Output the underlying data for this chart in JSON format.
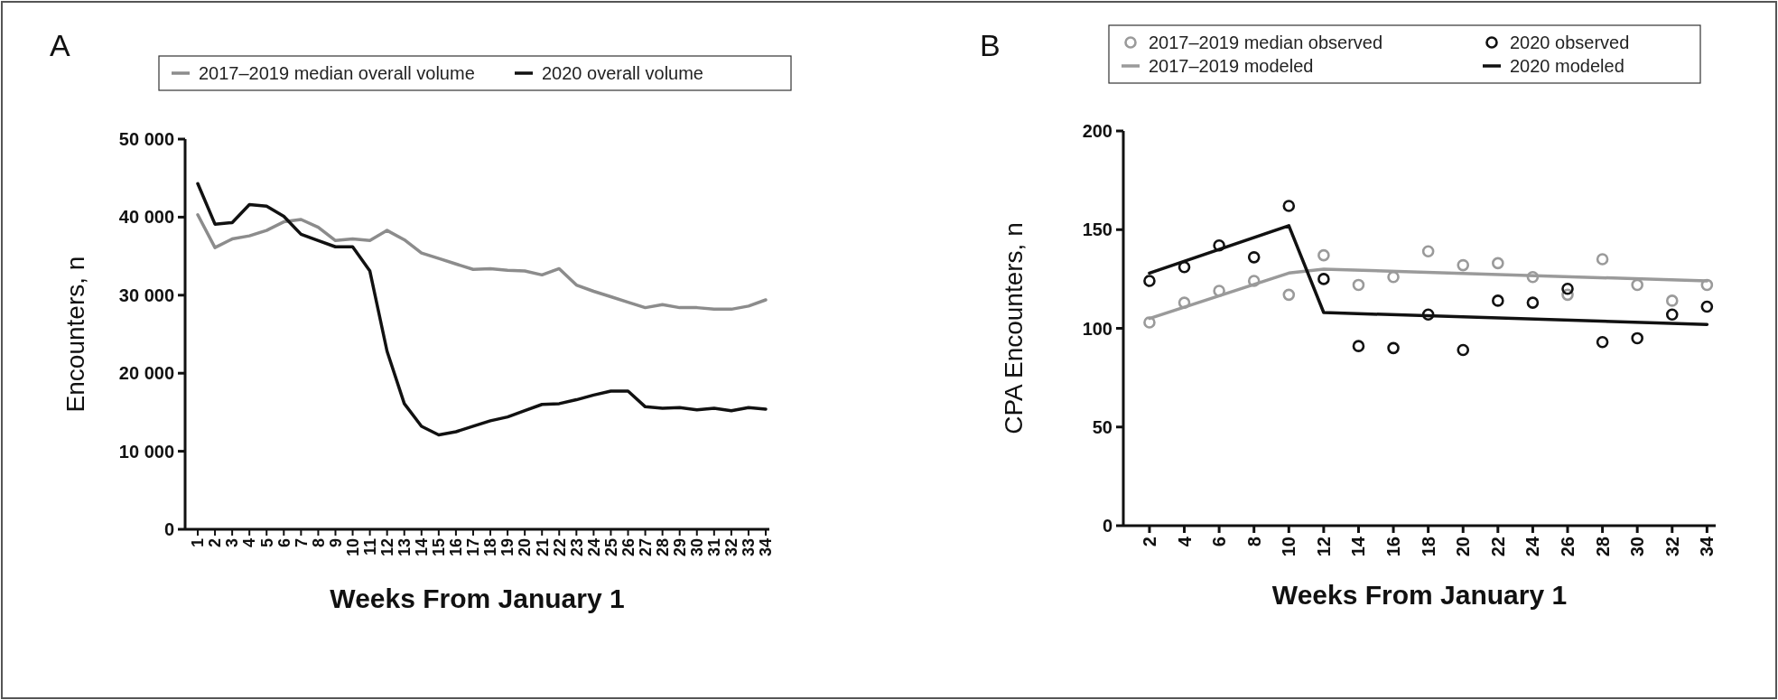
{
  "chart_data": [
    {
      "type": "line",
      "title": "A",
      "xlabel": "Weeks From January 1",
      "ylabel": "Encounters, n",
      "categories": [
        "1",
        "2",
        "3",
        "4",
        "5",
        "6",
        "7",
        "8",
        "9",
        "10",
        "11",
        "12",
        "13",
        "14",
        "15",
        "16",
        "17",
        "18",
        "19",
        "20",
        "21",
        "22",
        "23",
        "24",
        "25",
        "26",
        "27",
        "28",
        "29",
        "30",
        "31",
        "32",
        "33",
        "34"
      ],
      "series": [
        {
          "name": "2017–2019 median overall volume",
          "color": "#8c8c8c",
          "values": [
            40300,
            36100,
            37200,
            37600,
            38300,
            39400,
            39700,
            38700,
            37000,
            37200,
            37000,
            38300,
            37100,
            35400,
            34700,
            34000,
            33300,
            33400,
            33200,
            33100,
            32600,
            33400,
            31300,
            30500,
            29800,
            29100,
            28400,
            28800,
            28400,
            28400,
            28200,
            28200,
            28600,
            29400
          ]
        },
        {
          "name": "2020 overall volume",
          "color": "#111111",
          "values": [
            44300,
            39100,
            39300,
            41600,
            41400,
            40100,
            37800,
            37000,
            36200,
            36200,
            33100,
            22800,
            16100,
            13200,
            12100,
            12500,
            13200,
            13900,
            14400,
            15200,
            16000,
            16100,
            16600,
            17200,
            17700,
            17700,
            15700,
            15500,
            15600,
            15300,
            15500,
            15200,
            15600,
            15400
          ]
        }
      ],
      "ylim": [
        0,
        50000
      ],
      "yticks": [
        {
          "value": 0,
          "label": "0"
        },
        {
          "value": 10000,
          "label": "10 000"
        },
        {
          "value": 20000,
          "label": "20 000"
        },
        {
          "value": 30000,
          "label": "30 000"
        },
        {
          "value": 40000,
          "label": "40 000"
        },
        {
          "value": 50000,
          "label": "50 000"
        }
      ],
      "legend": "top",
      "line_style": "solid"
    },
    {
      "type": "scatter",
      "title": "B",
      "xlabel": "Weeks From January 1",
      "ylabel": "CPA Encounters, n",
      "x": [
        2,
        4,
        6,
        8,
        10,
        12,
        14,
        16,
        18,
        20,
        22,
        24,
        26,
        28,
        30,
        32,
        34
      ],
      "series": [
        {
          "name": "2017–2019 median observed",
          "color": "#9a9a9a",
          "values": [
            103,
            113,
            119,
            124,
            117,
            137,
            122,
            126,
            139,
            132,
            133,
            126,
            117,
            135,
            122,
            114,
            122
          ]
        },
        {
          "name": "2020 observed",
          "color": "#111111",
          "values": [
            124,
            131,
            142,
            136,
            162,
            125,
            91,
            90,
            107,
            89,
            114,
            113,
            120,
            93,
            95,
            107,
            111
          ]
        },
        {
          "name": "2017–2019 modeled",
          "type": "line",
          "marker": "none",
          "color": "#9a9a9a",
          "x": [
            2,
            10,
            12,
            34
          ],
          "values": [
            105,
            128,
            130,
            124
          ]
        },
        {
          "name": "2020 modeled",
          "type": "line",
          "marker": "none",
          "color": "#111111",
          "x": [
            2,
            10,
            12,
            34
          ],
          "values": [
            128,
            152,
            108,
            102
          ]
        }
      ],
      "xlim": [
        0.5,
        34.5
      ],
      "xticks": [
        2,
        4,
        6,
        8,
        10,
        12,
        14,
        16,
        18,
        20,
        22,
        24,
        26,
        28,
        30,
        32,
        34
      ],
      "ylim": [
        0,
        200
      ],
      "yticks": [
        0,
        50,
        100,
        150,
        200
      ],
      "legend": "top",
      "marker": "circle"
    }
  ]
}
